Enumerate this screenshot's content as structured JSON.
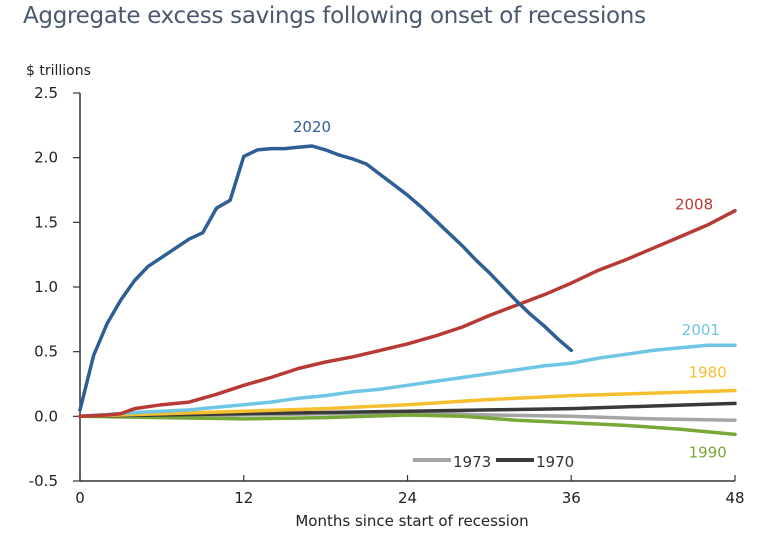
{
  "chart_data": {
    "type": "line",
    "title": "Aggregate excess savings following onset of recessions",
    "ylabel": "$ trillions",
    "xlabel": "Months since start of recession",
    "xlim": [
      0,
      48
    ],
    "ylim": [
      -0.5,
      2.5
    ],
    "xticks": [
      0,
      12,
      24,
      36,
      48
    ],
    "xtick_labels": [
      "0",
      "12",
      "24",
      "36",
      "48"
    ],
    "yticks": [
      -0.5,
      0.0,
      0.5,
      1.0,
      1.5,
      2.0,
      2.5
    ],
    "ytick_labels": [
      "-0.5",
      "0.0",
      "0.5",
      "1.0",
      "1.5",
      "2.0",
      "2.5"
    ],
    "grid": false,
    "legend": {
      "placement": "bottom-center",
      "entries": [
        "1973",
        "1970"
      ]
    },
    "series": [
      {
        "name": "2020",
        "color": "#2e5f94",
        "label_pos": [
          17,
          2.2
        ],
        "x": [
          0,
          1,
          2,
          3,
          4,
          5,
          6,
          7,
          8,
          9,
          10,
          11,
          12,
          13,
          14,
          15,
          16,
          17,
          18,
          19,
          20,
          21,
          22,
          23,
          24,
          25,
          26,
          27,
          28,
          29,
          30,
          31,
          32,
          33,
          34,
          35,
          36
        ],
        "y": [
          0.05,
          0.47,
          0.72,
          0.9,
          1.05,
          1.16,
          1.23,
          1.3,
          1.37,
          1.42,
          1.61,
          1.67,
          2.01,
          2.06,
          2.07,
          2.07,
          2.08,
          2.09,
          2.06,
          2.02,
          1.99,
          1.95,
          1.87,
          1.79,
          1.71,
          1.62,
          1.52,
          1.42,
          1.32,
          1.21,
          1.11,
          1.0,
          0.89,
          0.79,
          0.7,
          0.6,
          0.51
        ]
      },
      {
        "name": "2008",
        "color": "#b83a35",
        "label_pos": [
          45,
          1.6
        ],
        "x": [
          0,
          2,
          3,
          4,
          6,
          8,
          10,
          12,
          14,
          16,
          18,
          20,
          22,
          24,
          26,
          28,
          30,
          32,
          34,
          36,
          38,
          40,
          42,
          44,
          46,
          48
        ],
        "y": [
          0,
          0.01,
          0.02,
          0.06,
          0.09,
          0.11,
          0.17,
          0.24,
          0.3,
          0.37,
          0.42,
          0.46,
          0.51,
          0.56,
          0.62,
          0.69,
          0.78,
          0.86,
          0.94,
          1.03,
          1.13,
          1.21,
          1.3,
          1.39,
          1.48,
          1.59
        ]
      },
      {
        "name": "2001",
        "color": "#6ec6e4",
        "label_pos": [
          45.5,
          0.63
        ],
        "x": [
          0,
          4,
          6,
          8,
          10,
          12,
          14,
          16,
          18,
          20,
          22,
          24,
          26,
          28,
          30,
          32,
          34,
          36,
          38,
          40,
          42,
          44,
          45,
          46,
          48
        ],
        "y": [
          0,
          0.03,
          0.04,
          0.05,
          0.07,
          0.09,
          0.11,
          0.14,
          0.16,
          0.19,
          0.21,
          0.24,
          0.27,
          0.3,
          0.33,
          0.36,
          0.39,
          0.41,
          0.45,
          0.48,
          0.51,
          0.53,
          0.54,
          0.55,
          0.55
        ]
      },
      {
        "name": "1980",
        "color": "#f5bf30",
        "label_pos": [
          46,
          0.3
        ],
        "x": [
          0,
          6,
          12,
          18,
          24,
          30,
          36,
          42,
          48
        ],
        "y": [
          0,
          0.02,
          0.04,
          0.06,
          0.09,
          0.13,
          0.16,
          0.18,
          0.2
        ]
      },
      {
        "name": "1970",
        "color": "#3a3a3a",
        "label_pos": null,
        "x": [
          0,
          6,
          12,
          18,
          24,
          30,
          36,
          42,
          48
        ],
        "y": [
          0,
          0.01,
          0.02,
          0.03,
          0.04,
          0.05,
          0.06,
          0.08,
          0.1
        ]
      },
      {
        "name": "1973",
        "color": "#a5a5a5",
        "label_pos": null,
        "x": [
          0,
          6,
          12,
          18,
          24,
          30,
          36,
          42,
          48
        ],
        "y": [
          0,
          0,
          0.01,
          0.02,
          0.03,
          0.01,
          0,
          -0.02,
          -0.03
        ]
      },
      {
        "name": "1990",
        "color": "#78a83a",
        "label_pos": [
          46,
          -0.32
        ],
        "x": [
          0,
          6,
          12,
          18,
          24,
          28,
          32,
          36,
          40,
          44,
          48
        ],
        "y": [
          0,
          -0.01,
          -0.02,
          -0.01,
          0.01,
          0,
          -0.03,
          -0.05,
          -0.07,
          -0.1,
          -0.14
        ]
      }
    ]
  }
}
